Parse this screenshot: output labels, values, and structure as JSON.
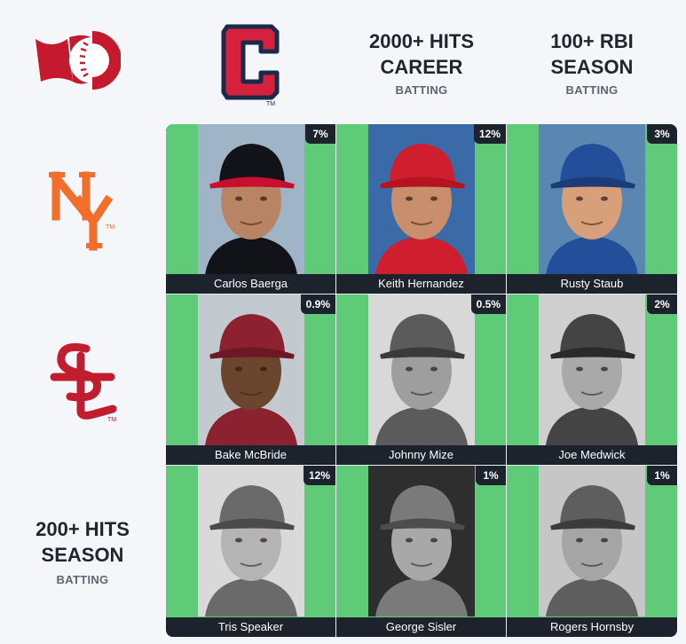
{
  "columns": [
    {
      "kind": "team",
      "logo_icon": "guardians-c-logo-icon",
      "color": "#d5213d",
      "outline": "#1b2a4a"
    },
    {
      "kind": "stat",
      "title": "2000+ HITS\nCAREER",
      "subtitle": "BATTING"
    },
    {
      "kind": "stat",
      "title": "100+ RBI\nSEASON",
      "subtitle": "BATTING"
    }
  ],
  "rows": [
    {
      "kind": "team",
      "logo_icon": "mets-ny-logo-icon",
      "color": "#f26e2a",
      "tm": "TM"
    },
    {
      "kind": "team",
      "logo_icon": "cardinals-stl-logo-icon",
      "color": "#c21d2f",
      "tm": "TM"
    },
    {
      "kind": "stat",
      "title": "200+ HITS\nSEASON",
      "subtitle": "BATTING"
    }
  ],
  "cells": [
    [
      {
        "player": "Carlos Baerga",
        "pct": "7%",
        "photo_icon": "player-photo-cap-red-icon",
        "cap": "#111318",
        "bill": "#c8102e",
        "skin": "#b98463",
        "bg": "#9fb4c7"
      },
      {
        "player": "Keith Hernandez",
        "pct": "12%",
        "photo_icon": "player-photo-cap-red-icon",
        "cap": "#cf1f2e",
        "bill": "#b4141f",
        "skin": "#c98f6c",
        "bg": "#3b6aa8"
      },
      {
        "player": "Rusty Staub",
        "pct": "3%",
        "photo_icon": "player-photo-cap-blue-icon",
        "cap": "#234e9a",
        "bill": "#1b3c78",
        "skin": "#d7a07a",
        "bg": "#5a86b2"
      }
    ],
    [
      {
        "player": "Bake McBride",
        "pct": "0.9%",
        "photo_icon": "player-photo-cap-maroon-icon",
        "cap": "#8c2130",
        "bill": "#6e1824",
        "skin": "#6b452e",
        "bg": "#c2c9cf"
      },
      {
        "player": "Johnny Mize",
        "pct": "0.5%",
        "photo_icon": "player-photo-vintage-icon",
        "cap": "#5b5b5b",
        "bill": "#3a3a3a",
        "skin": "#9e9e9e",
        "bg": "#d8d8d8"
      },
      {
        "player": "Joe Medwick",
        "pct": "2%",
        "photo_icon": "player-photo-vintage-icon",
        "cap": "#444444",
        "bill": "#2a2a2a",
        "skin": "#a9a9a9",
        "bg": "#cfcfcf"
      }
    ],
    [
      {
        "player": "Tris Speaker",
        "pct": "12%",
        "photo_icon": "player-photo-vintage-icon",
        "cap": "#6a6a6a",
        "bill": "#4a4a4a",
        "skin": "#b4b4b4",
        "bg": "#d9d9d9"
      },
      {
        "player": "George Sisler",
        "pct": "1%",
        "photo_icon": "player-photo-vintage-icon",
        "cap": "#7a7a7a",
        "bill": "#4d4d4d",
        "skin": "#a8a8a8",
        "bg": "#2e2e2e"
      },
      {
        "player": "Rogers Hornsby",
        "pct": "1%",
        "photo_icon": "player-photo-vintage-icon",
        "cap": "#5e5e5e",
        "bill": "#3b3b3b",
        "skin": "#a5a5a5",
        "bg": "#c6c6c6"
      }
    ]
  ],
  "corner_logo_icon": "immaculate-grid-logo-icon",
  "corner_logo_color": "#c5192d"
}
